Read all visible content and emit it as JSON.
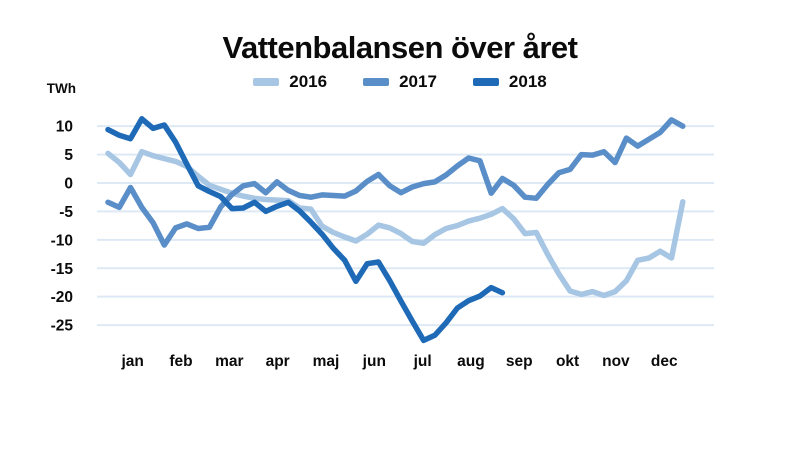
{
  "title": "Vattenbalansen över året",
  "y_axis": {
    "unit_label": "TWh",
    "ticks": [
      10,
      5,
      0,
      -5,
      -10,
      -15,
      -20,
      -25
    ]
  },
  "x_axis": {
    "months": [
      "jan",
      "feb",
      "mar",
      "apr",
      "maj",
      "jun",
      "jul",
      "aug",
      "sep",
      "okt",
      "nov",
      "dec"
    ]
  },
  "legend": {
    "items": [
      {
        "label": "2016",
        "color": "#a7c6e4"
      },
      {
        "label": "2017",
        "color": "#5a8ec8"
      },
      {
        "label": "2018",
        "color": "#1e6ab7"
      }
    ]
  },
  "colors": {
    "series_2016": "#a7c6e4",
    "series_2017": "#5a8ec8",
    "series_2018": "#1e6ab7",
    "gridline": "#dde9f5",
    "text": "#0b0b0c",
    "background": "#ffffff"
  },
  "chart_data": {
    "type": "line",
    "title": "Vattenbalansen över året",
    "ylabel": "TWh",
    "x_unit": "week-of-year",
    "categories": [
      "jan",
      "feb",
      "mar",
      "apr",
      "maj",
      "jun",
      "jul",
      "aug",
      "sep",
      "okt",
      "nov",
      "dec"
    ],
    "ylim": [
      -29,
      13
    ],
    "y_ticks": [
      10,
      5,
      0,
      -5,
      -10,
      -15,
      -20,
      -25
    ],
    "grid": true,
    "legend_position": "top",
    "series": [
      {
        "name": "2016",
        "color": "#a7c6e4",
        "values": [
          5.2,
          3.6,
          1.5,
          5.5,
          4.8,
          4.3,
          3.8,
          2.9,
          1.2,
          -0.4,
          -1.1,
          -1.8,
          -2.3,
          -2.7,
          -2.9,
          -3.0,
          -3.1,
          -4.4,
          -4.6,
          -7.6,
          -8.7,
          -9.5,
          -10.2,
          -9.0,
          -7.4,
          -7.9,
          -8.9,
          -10.3,
          -10.6,
          -9.1,
          -8.0,
          -7.5,
          -6.7,
          -6.2,
          -5.5,
          -4.5,
          -6.3,
          -8.9,
          -8.7,
          -12.5,
          -16.0,
          -19.0,
          -19.6,
          -19.1,
          -19.8,
          -19.1,
          -17.2,
          -13.6,
          -13.2,
          -12.0,
          -13.2,
          -3.3
        ]
      },
      {
        "name": "2017",
        "color": "#5a8ec8",
        "values": [
          -3.4,
          -4.3,
          -0.8,
          -4.3,
          -7.0,
          -10.9,
          -7.9,
          -7.2,
          -8.0,
          -7.8,
          -4.2,
          -2.0,
          -0.5,
          -0.1,
          -1.7,
          0.2,
          -1.3,
          -2.2,
          -2.5,
          -2.1,
          -2.2,
          -2.3,
          -1.4,
          0.3,
          1.5,
          -0.5,
          -1.7,
          -0.7,
          -0.1,
          0.2,
          1.4,
          3.0,
          4.4,
          3.9,
          -1.8,
          0.8,
          -0.4,
          -2.5,
          -2.7,
          -0.3,
          1.8,
          2.4,
          5.0,
          4.9,
          5.5,
          3.6,
          7.9,
          6.5,
          7.7,
          8.9,
          11.1,
          10.0
        ]
      },
      {
        "name": "2018",
        "color": "#1e6ab7",
        "values": [
          9.4,
          8.4,
          7.8,
          11.3,
          9.6,
          10.2,
          7.2,
          3.3,
          -0.5,
          -1.5,
          -2.4,
          -4.5,
          -4.4,
          -3.4,
          -5.0,
          -4.1,
          -3.4,
          -4.9,
          -6.9,
          -9.0,
          -11.5,
          -13.6,
          -17.3,
          -14.2,
          -13.9,
          -17.2,
          -20.8,
          -24.3,
          -27.7,
          -26.8,
          -24.6,
          -22.0,
          -20.7,
          -19.9,
          -18.4,
          -19.3
        ]
      }
    ]
  }
}
